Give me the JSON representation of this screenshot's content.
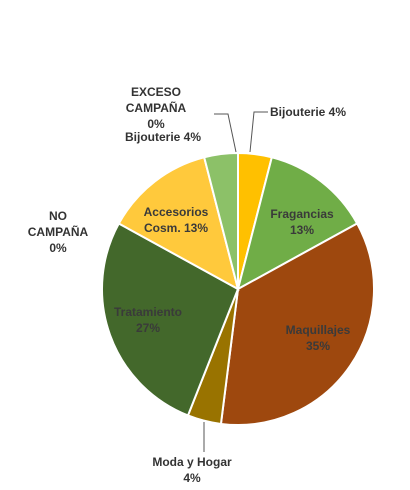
{
  "chart_data": {
    "type": "pie",
    "start_angle_deg": 0,
    "direction": "clockwise",
    "slices": [
      {
        "name": "Bijouterie",
        "value": 4,
        "pct_label": "4%",
        "color": "#FFC000",
        "label_inside": false
      },
      {
        "name": "Fragancias",
        "value": 13,
        "pct_label": "13%",
        "color": "#70AD47",
        "label_inside": true
      },
      {
        "name": "Maquillajes",
        "value": 35,
        "pct_label": "35%",
        "color": "#9E480E",
        "label_inside": true
      },
      {
        "name": "Moda y Hogar",
        "value": 4,
        "pct_label": "4%",
        "color": "#997300",
        "label_inside": false
      },
      {
        "name": "Tratamiento",
        "value": 27,
        "pct_label": "27%",
        "color": "#43682B",
        "label_inside": true
      },
      {
        "name": "NO CAMPAÑA",
        "value": 0,
        "pct_label": "0%",
        "color": "#264478",
        "label_inside": false
      },
      {
        "name": "Accesorios Cosm.",
        "value": 13,
        "pct_label": "13%",
        "color": "#FFC93C",
        "label_inside": true
      },
      {
        "name": "Bijouterie",
        "value": 4,
        "pct_label": "4%",
        "color": "#8CC168",
        "label_inside": false
      },
      {
        "name": "EXCESO CAMPAÑA",
        "value": 0,
        "pct_label": "0%",
        "color": "#7F6000",
        "label_inside": false
      }
    ],
    "title": "",
    "legend": "none"
  },
  "labels": [
    {
      "lines": [
        "Bijouterie 4%"
      ],
      "slice": 0
    },
    {
      "lines": [
        "Fragancias",
        "13%"
      ],
      "slice": 1
    },
    {
      "lines": [
        "Maquillajes",
        "35%"
      ],
      "slice": 2
    },
    {
      "lines": [
        "Moda y Hogar",
        "4%"
      ],
      "slice": 3
    },
    {
      "lines": [
        "Tratamiento",
        "27%"
      ],
      "slice": 4
    },
    {
      "lines": [
        "NO",
        "CAMPAÑA",
        "0%"
      ],
      "slice": 5
    },
    {
      "lines": [
        "Accesorios",
        "Cosm. 13%"
      ],
      "slice": 6
    },
    {
      "lines": [
        "Bijouterie 4%"
      ],
      "slice": 7
    },
    {
      "lines": [
        "EXCESO",
        "CAMPAÑA",
        "0%"
      ],
      "slice": 8
    }
  ]
}
